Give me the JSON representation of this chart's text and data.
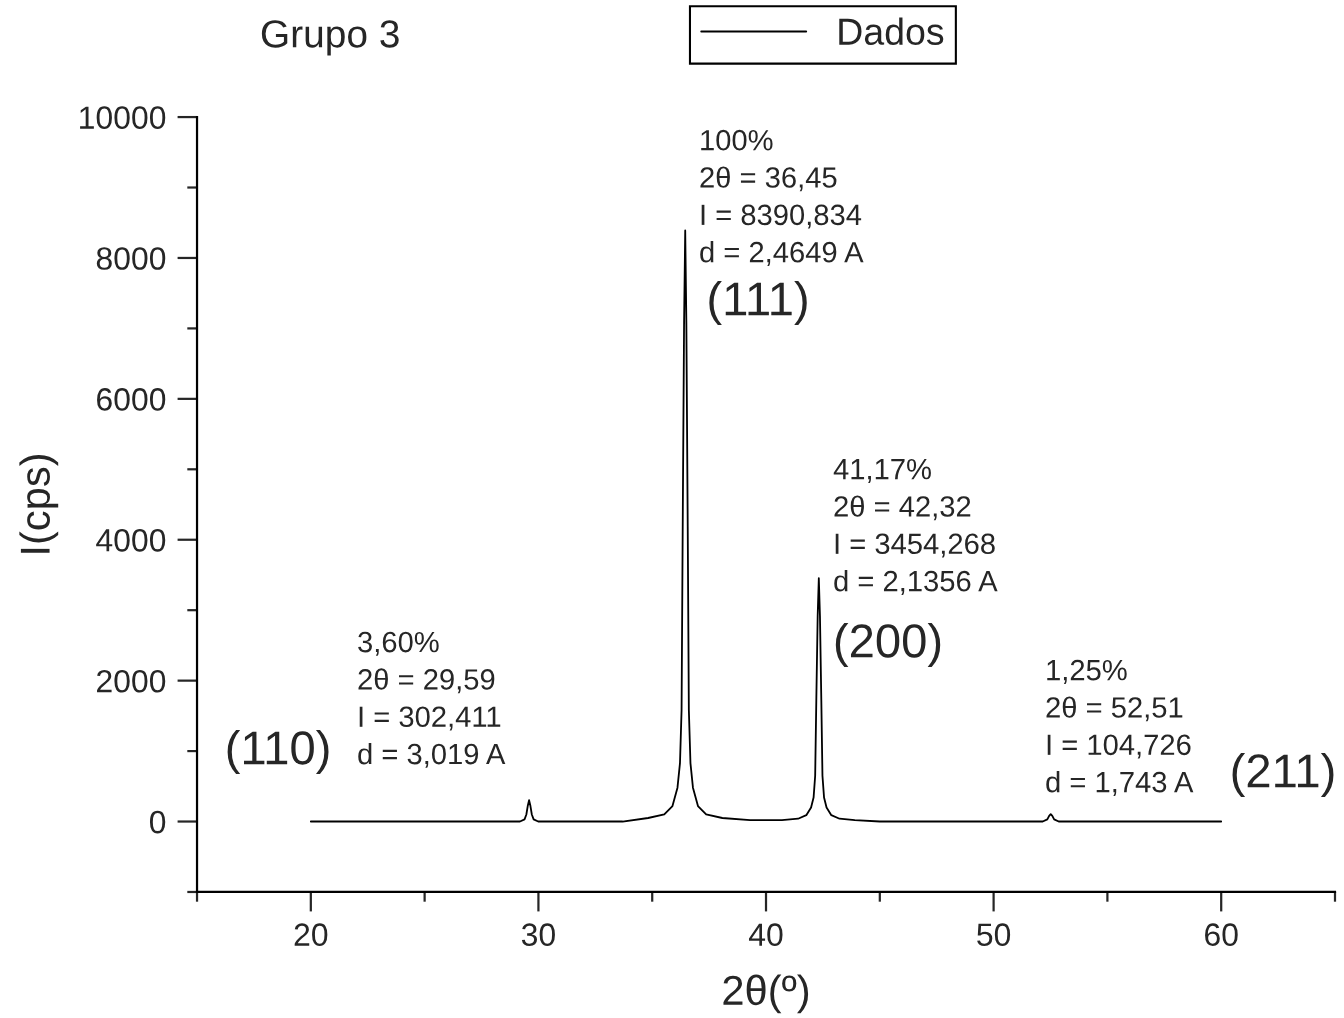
{
  "chart_data": {
    "type": "line",
    "title": "Grupo 3",
    "xlabel": "2θ(º)",
    "ylabel": "I(cps)",
    "x": [
      20,
      29.19,
      29.39,
      29.47,
      29.53,
      29.59,
      29.65,
      29.71,
      29.79,
      29.99,
      33.7,
      34.82,
      35.53,
      35.89,
      36.11,
      36.22,
      36.29,
      36.34,
      36.4,
      36.45,
      36.5,
      36.56,
      36.61,
      36.68,
      36.79,
      37.01,
      37.37,
      38.08,
      39.3,
      40.7,
      41.41,
      41.77,
      41.98,
      42.09,
      42.16,
      42.21,
      42.27,
      42.32,
      42.37,
      42.43,
      42.48,
      42.55,
      42.66,
      42.87,
      43.23,
      43.9,
      45,
      52.16,
      52.36,
      52.44,
      52.51,
      52.58,
      52.66,
      52.86,
      60
    ],
    "series": [
      {
        "name": "Dados",
        "color": "#000000",
        "values": [
          0,
          0,
          30,
          100,
          220,
          302.411,
          220,
          100,
          30,
          0,
          0,
          50,
          100,
          220,
          480,
          830,
          1580,
          4190,
          7080,
          8390.834,
          7080,
          4190,
          1580,
          830,
          480,
          220,
          100,
          50,
          20,
          20,
          40,
          90,
          200,
          340,
          650,
          1720,
          2920,
          3454.268,
          2920,
          1720,
          650,
          340,
          200,
          90,
          40,
          20,
          0,
          0,
          30,
          80,
          104.726,
          80,
          30,
          0,
          0
        ]
      }
    ],
    "xlim": [
      15,
      65
    ],
    "xticks": [
      {
        "value": 15,
        "label": null
      },
      20,
      {
        "value": 25,
        "label": null
      },
      30,
      {
        "value": 35,
        "label": null
      },
      40,
      {
        "value": 45,
        "label": null
      },
      50,
      {
        "value": 55,
        "label": null
      },
      60,
      {
        "value": 65,
        "label": null
      }
    ],
    "ylim": [
      -1000,
      10000
    ],
    "yticks": [
      {
        "value": -1000,
        "label": null
      },
      0,
      {
        "value": 1000,
        "label": null
      },
      2000,
      {
        "value": 3000,
        "label": null
      },
      4000,
      {
        "value": 5000,
        "label": null
      },
      6000,
      {
        "value": 7000,
        "label": null
      },
      8000,
      {
        "value": 9000,
        "label": null
      },
      10000
    ],
    "annotations": [
      "3,60%\n2θ = 29,59\nI = 302,411\nd = 3,019 A",
      "(110)",
      "100%\n2θ = 36,45\nI = 8390,834\nd = 2,4649 A",
      "(111)",
      "41,17%\n2θ = 42,32\nI = 3454,268\nd = 2,1356 A",
      "(200)",
      "1,25%\n2θ = 52,51\nI = 104,726\nd = 1,743 A",
      "(211)"
    ],
    "grid": false,
    "legend": "top"
  }
}
